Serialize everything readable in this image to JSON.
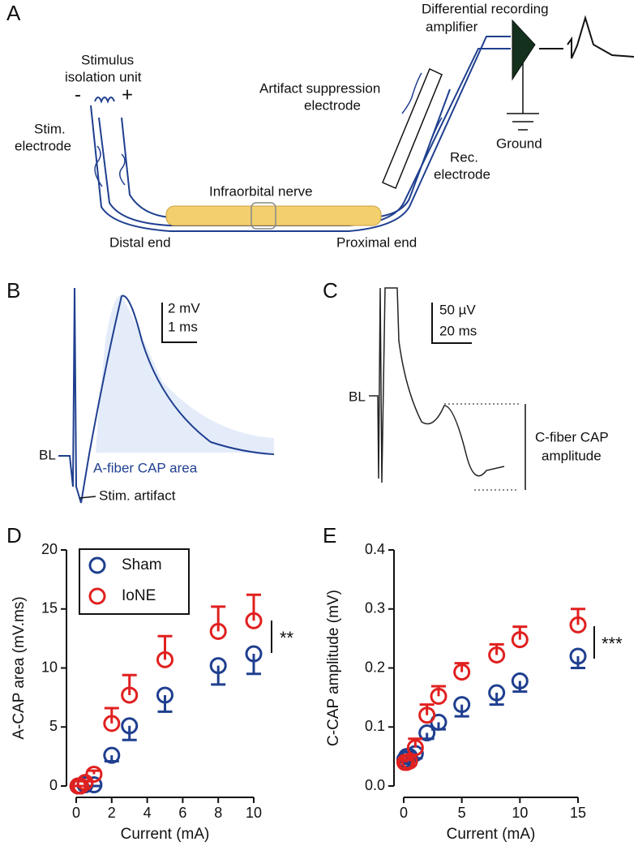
{
  "panels": [
    "A",
    "B",
    "C",
    "D",
    "E"
  ],
  "diagram": {
    "labels": [
      "Differential recording",
      "amplifier",
      "Stimulus",
      "isolation unit",
      "-",
      "+",
      "Stim.",
      "electrode",
      "Artifact suppression",
      "electrode",
      "Ground",
      "Rec.",
      "electrode",
      "Infraorbital nerve",
      "Distal end",
      "Proximal end"
    ]
  },
  "trace_b": {
    "labels": [
      "2 mV",
      "1 ms",
      "BL",
      "A-fiber CAP area",
      "Stim. artifact"
    ]
  },
  "trace_c": {
    "labels": [
      "50 µV",
      "20 ms",
      "BL",
      "C-fiber CAP",
      "amplitude"
    ]
  },
  "chart_data": [
    {
      "type": "scatter",
      "xlabel": "Current (mA)",
      "ylabel": "A-CAP area (mV.ms)",
      "xlim": [
        0,
        10
      ],
      "xticks": [
        0,
        2,
        4,
        6,
        8,
        10
      ],
      "ylim": [
        0,
        20
      ],
      "yticks": [
        0,
        5,
        10,
        15,
        20
      ],
      "annotation": "**",
      "series": [
        {
          "name": "Sham",
          "color": "#1f3f8f",
          "error_side": "down",
          "x": [
            0.1,
            0.25,
            0.5,
            1,
            2,
            3,
            5,
            8,
            10
          ],
          "values": [
            0,
            0,
            0.1,
            0.1,
            2.6,
            5.1,
            7.7,
            10.2,
            11.2
          ],
          "errors": [
            0,
            0,
            0.1,
            0.1,
            0.5,
            1.2,
            1.4,
            1.6,
            1.7
          ]
        },
        {
          "name": "IoNE",
          "color": "#e0201f",
          "error_side": "up",
          "x": [
            0.1,
            0.25,
            0.5,
            1,
            2,
            3,
            5,
            8,
            10
          ],
          "values": [
            0,
            0,
            0.3,
            1.0,
            5.3,
            7.7,
            10.7,
            13.1,
            14.0
          ],
          "errors": [
            0,
            0,
            0.1,
            0.3,
            1.3,
            1.7,
            2.0,
            2.1,
            2.2
          ]
        }
      ]
    },
    {
      "type": "scatter",
      "xlabel": "Current (mA)",
      "ylabel": "C-CAP amplitude (mV)",
      "xlim": [
        0,
        15
      ],
      "xticks": [
        0,
        5,
        10,
        15
      ],
      "ylim": [
        0,
        0.4
      ],
      "yticks": [
        {
          "value": 0,
          "label": "0.0"
        },
        0.1,
        0.2,
        0.3,
        0.4
      ],
      "annotation": "***",
      "series": [
        {
          "name": "Sham",
          "color": "#1f3f8f",
          "error_side": "down",
          "x": [
            0.1,
            0.25,
            0.5,
            1,
            2,
            3,
            5,
            8,
            10,
            15
          ],
          "values": [
            0.045,
            0.05,
            0.05,
            0.055,
            0.09,
            0.108,
            0.138,
            0.158,
            0.178,
            0.22
          ],
          "errors": [
            0.005,
            0.005,
            0.005,
            0.008,
            0.01,
            0.012,
            0.02,
            0.02,
            0.018,
            0.02
          ]
        },
        {
          "name": "IoNE",
          "color": "#e0201f",
          "error_side": "up",
          "x": [
            0.1,
            0.25,
            0.5,
            1,
            2,
            3,
            5,
            8,
            10,
            15
          ],
          "values": [
            0.04,
            0.04,
            0.042,
            0.065,
            0.12,
            0.152,
            0.193,
            0.222,
            0.248,
            0.273
          ],
          "errors": [
            0.005,
            0.005,
            0.008,
            0.015,
            0.018,
            0.017,
            0.015,
            0.018,
            0.022,
            0.027
          ]
        }
      ]
    }
  ]
}
